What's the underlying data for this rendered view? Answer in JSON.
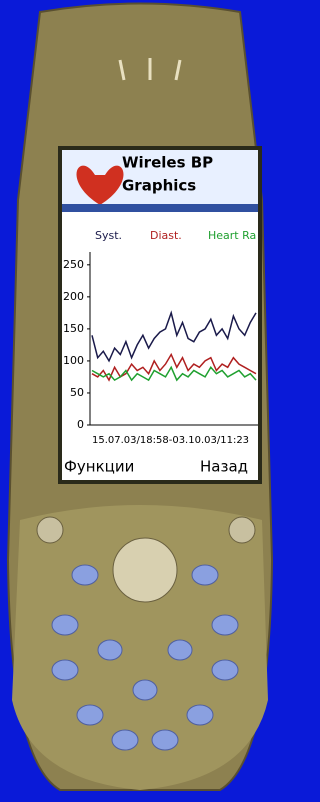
{
  "chart_data": {
    "type": "line",
    "title": [
      "Wireles BP",
      "Graphics"
    ],
    "xlabel": "15.07.03/18:58-03.10.03/11:23",
    "ylim": [
      0,
      270
    ],
    "yticks": [
      0,
      50,
      100,
      150,
      200,
      250
    ],
    "grid": false,
    "series": [
      {
        "name": "Syst.",
        "color": "#1a1a4a",
        "values": [
          140,
          105,
          115,
          100,
          120,
          110,
          130,
          105,
          125,
          140,
          120,
          135,
          145,
          150,
          175,
          140,
          160,
          135,
          130,
          145,
          150,
          165,
          140,
          150,
          135,
          170,
          150,
          140,
          160,
          175
        ]
      },
      {
        "name": "Diast.",
        "color": "#b02020",
        "values": [
          80,
          75,
          85,
          70,
          90,
          75,
          80,
          95,
          85,
          90,
          80,
          100,
          85,
          95,
          110,
          90,
          105,
          85,
          95,
          90,
          100,
          105,
          85,
          95,
          90,
          105,
          95,
          90,
          85,
          80
        ]
      },
      {
        "name": "Heart Ra",
        "color": "#20a030",
        "values": [
          85,
          80,
          75,
          80,
          70,
          75,
          85,
          70,
          80,
          75,
          70,
          85,
          80,
          75,
          90,
          70,
          80,
          75,
          85,
          80,
          75,
          90,
          80,
          85,
          75,
          80,
          85,
          75,
          80,
          70
        ]
      }
    ]
  },
  "softkeys": {
    "left": "Функции",
    "right": "Назад"
  }
}
